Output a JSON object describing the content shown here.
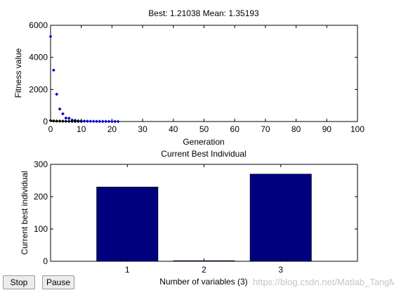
{
  "chart_data": [
    {
      "type": "scatter",
      "title": "Best: 1.21038 Mean: 1.35193",
      "xlabel": "Generation",
      "ylabel": "Fitness value",
      "xlim": [
        0,
        100
      ],
      "ylim": [
        0,
        6000
      ],
      "xticks": [
        0,
        10,
        20,
        30,
        40,
        50,
        60,
        70,
        80,
        90,
        100
      ],
      "yticks": [
        0,
        2000,
        4000,
        6000
      ],
      "grid": false,
      "series": [
        {
          "role": "mean",
          "color": "#0000cc",
          "x": [
            0,
            1,
            2,
            3,
            4,
            5,
            6,
            7,
            8,
            9,
            10,
            11,
            12,
            13,
            14,
            15,
            16,
            17,
            18,
            19,
            20,
            21,
            22
          ],
          "y": [
            5300,
            3200,
            1700,
            780,
            480,
            220,
            200,
            90,
            70,
            45,
            30,
            25,
            20,
            15,
            12,
            10,
            8,
            6,
            5,
            4,
            3,
            2,
            1.35
          ]
        },
        {
          "role": "best",
          "color": "#000000",
          "x": [
            0,
            1,
            2,
            3,
            4,
            5,
            6,
            7,
            8,
            9,
            10
          ],
          "y": [
            60,
            40,
            30,
            25,
            20,
            15,
            12,
            10,
            8,
            6,
            5
          ]
        }
      ]
    },
    {
      "type": "bar",
      "title": "Current Best Individual",
      "xlabel": "Number of variables (3)",
      "ylabel": "Current best individual",
      "categories": [
        "1",
        "2",
        "3"
      ],
      "values": [
        230,
        2,
        270
      ],
      "ylim": [
        0,
        300
      ],
      "yticks": [
        0,
        100,
        200,
        300
      ],
      "bar_color": "#00007f",
      "grid": false
    }
  ],
  "controls": {
    "stop_label": "Stop",
    "pause_label": "Pause"
  },
  "watermark": "https://blog.csdn.net/Matlab_TangMen"
}
